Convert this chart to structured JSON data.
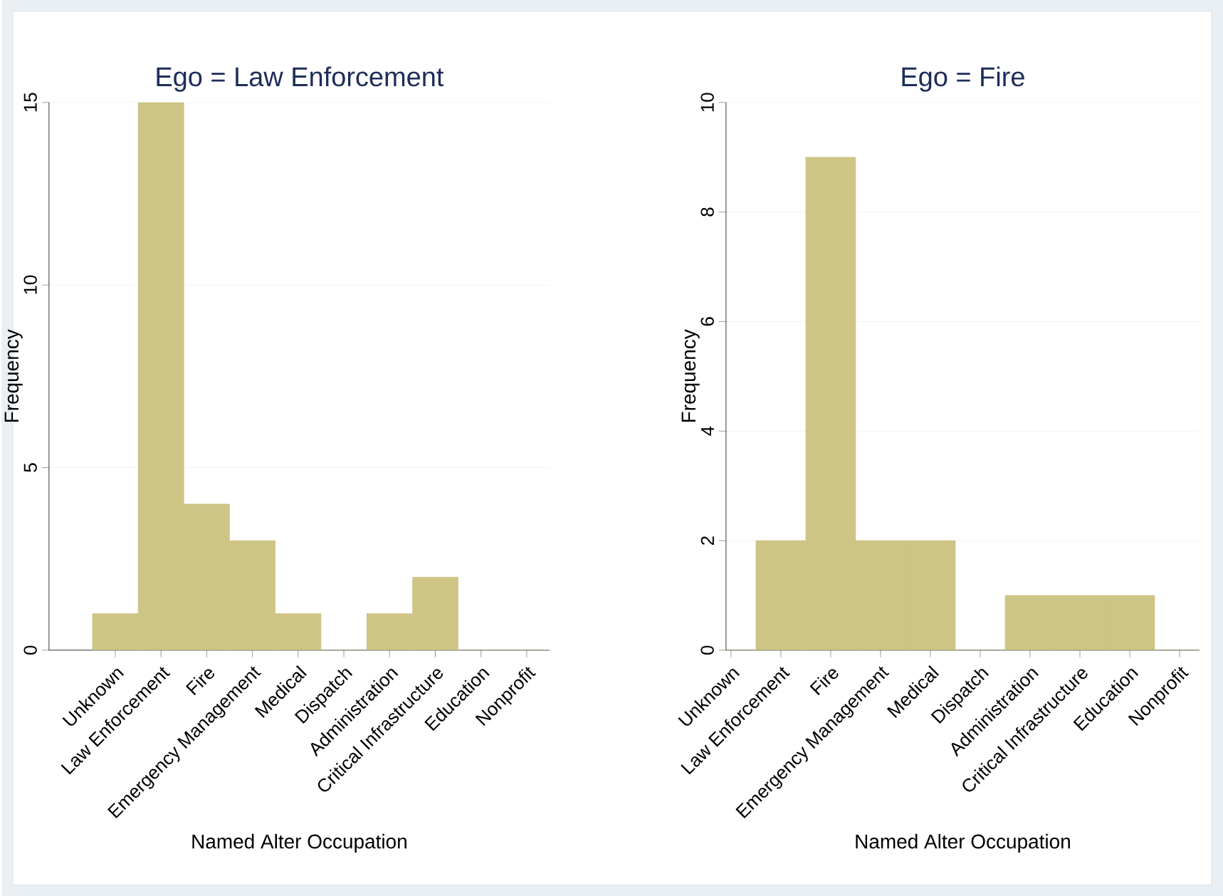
{
  "chart_data": [
    {
      "type": "bar",
      "title": "Ego = Law Enforcement",
      "xlabel": "Named Alter Occupation",
      "ylabel": "Frequency",
      "categories": [
        "Unknown",
        "Law Enforcement",
        "Fire",
        "Emergency Management",
        "Medical",
        "Dispatch",
        "Administration",
        "Critical Infrastructure",
        "Education",
        "Nonprofit"
      ],
      "values": [
        1,
        15,
        4,
        3,
        1,
        0,
        1,
        2,
        0,
        0
      ],
      "color": "#cec485",
      "ylim": [
        0,
        15
      ],
      "yticks": [
        0,
        5,
        10,
        15
      ],
      "grid": "y"
    },
    {
      "type": "bar",
      "title": "Ego = Fire",
      "xlabel": "Named Alter Occupation",
      "ylabel": "Frequency",
      "categories": [
        "Unknown",
        "Law Enforcement",
        "Fire",
        "Emergency Management",
        "Medical",
        "Dispatch",
        "Administration",
        "Critical Infrastructure",
        "Education",
        "Nonprofit"
      ],
      "values": [
        0,
        2,
        9,
        2,
        2,
        0,
        1,
        1,
        1,
        0
      ],
      "color": "#cec485",
      "ylim": [
        0,
        10
      ],
      "yticks": [
        0,
        2,
        4,
        6,
        8,
        10
      ],
      "grid": "y"
    }
  ]
}
